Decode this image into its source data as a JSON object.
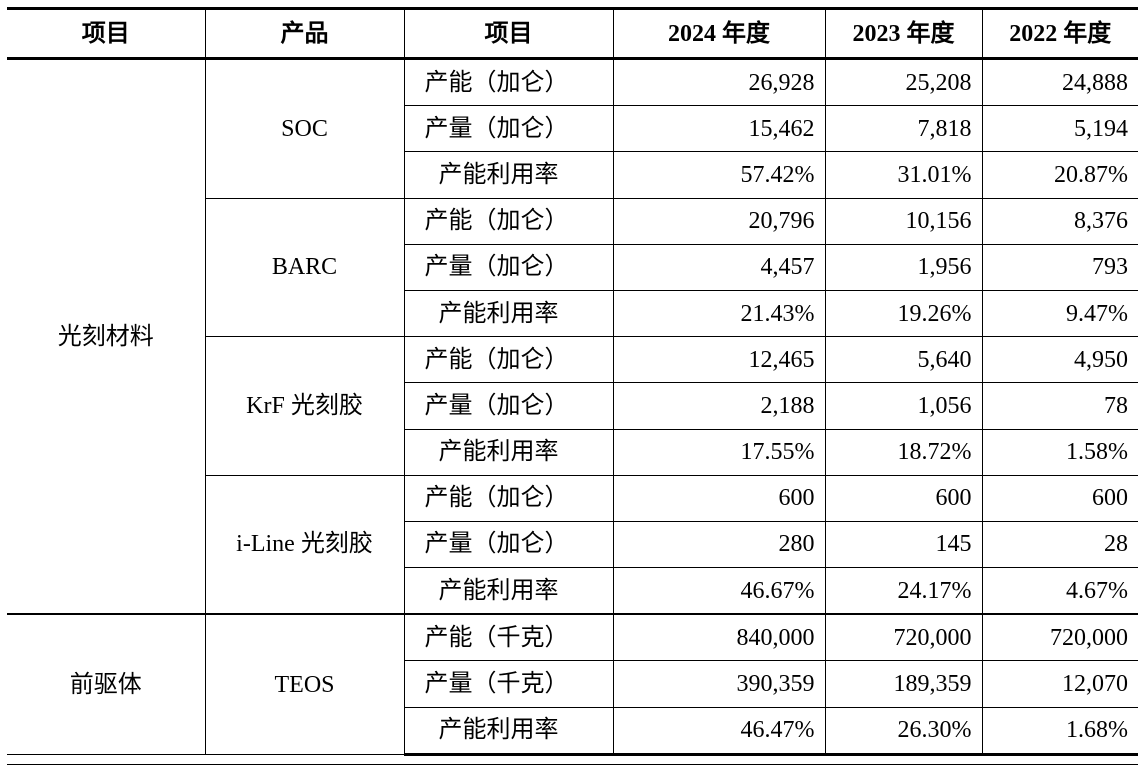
{
  "headers": [
    "项目",
    "产品",
    "项目",
    "2024 年度",
    "2023 年度",
    "2022 年度"
  ],
  "categories": [
    "光刻材料",
    "前驱体"
  ],
  "products": [
    "SOC",
    "BARC",
    "KrF 光刻胶",
    "i-Line 光刻胶",
    "TEOS"
  ],
  "rows": [
    {
      "metric": "产能（加仑）",
      "v2024": "26,928",
      "v2023": "25,208",
      "v2022": "24,888"
    },
    {
      "metric": "产量（加仑）",
      "v2024": "15,462",
      "v2023": "7,818",
      "v2022": "5,194"
    },
    {
      "metric": "产能利用率",
      "v2024": "57.42%",
      "v2023": "31.01%",
      "v2022": "20.87%"
    },
    {
      "metric": "产能（加仑）",
      "v2024": "20,796",
      "v2023": "10,156",
      "v2022": "8,376"
    },
    {
      "metric": "产量（加仑）",
      "v2024": "4,457",
      "v2023": "1,956",
      "v2022": "793"
    },
    {
      "metric": "产能利用率",
      "v2024": "21.43%",
      "v2023": "19.26%",
      "v2022": "9.47%"
    },
    {
      "metric": "产能（加仑）",
      "v2024": "12,465",
      "v2023": "5,640",
      "v2022": "4,950"
    },
    {
      "metric": "产量（加仑）",
      "v2024": "2,188",
      "v2023": "1,056",
      "v2022": "78"
    },
    {
      "metric": "产能利用率",
      "v2024": "17.55%",
      "v2023": "18.72%",
      "v2022": "1.58%"
    },
    {
      "metric": "产能（加仑）",
      "v2024": "600",
      "v2023": "600",
      "v2022": "600"
    },
    {
      "metric": "产量（加仑）",
      "v2024": "280",
      "v2023": "145",
      "v2022": "28"
    },
    {
      "metric": "产能利用率",
      "v2024": "46.67%",
      "v2023": "24.17%",
      "v2022": "4.67%"
    },
    {
      "metric": "产能（千克）",
      "v2024": "840,000",
      "v2023": "720,000",
      "v2022": "720,000"
    },
    {
      "metric": "产量（千克）",
      "v2024": "390,359",
      "v2023": "189,359",
      "v2022": "12,070"
    },
    {
      "metric": "产能利用率",
      "v2024": "46.47%",
      "v2023": "26.30%",
      "v2022": "1.68%"
    }
  ]
}
